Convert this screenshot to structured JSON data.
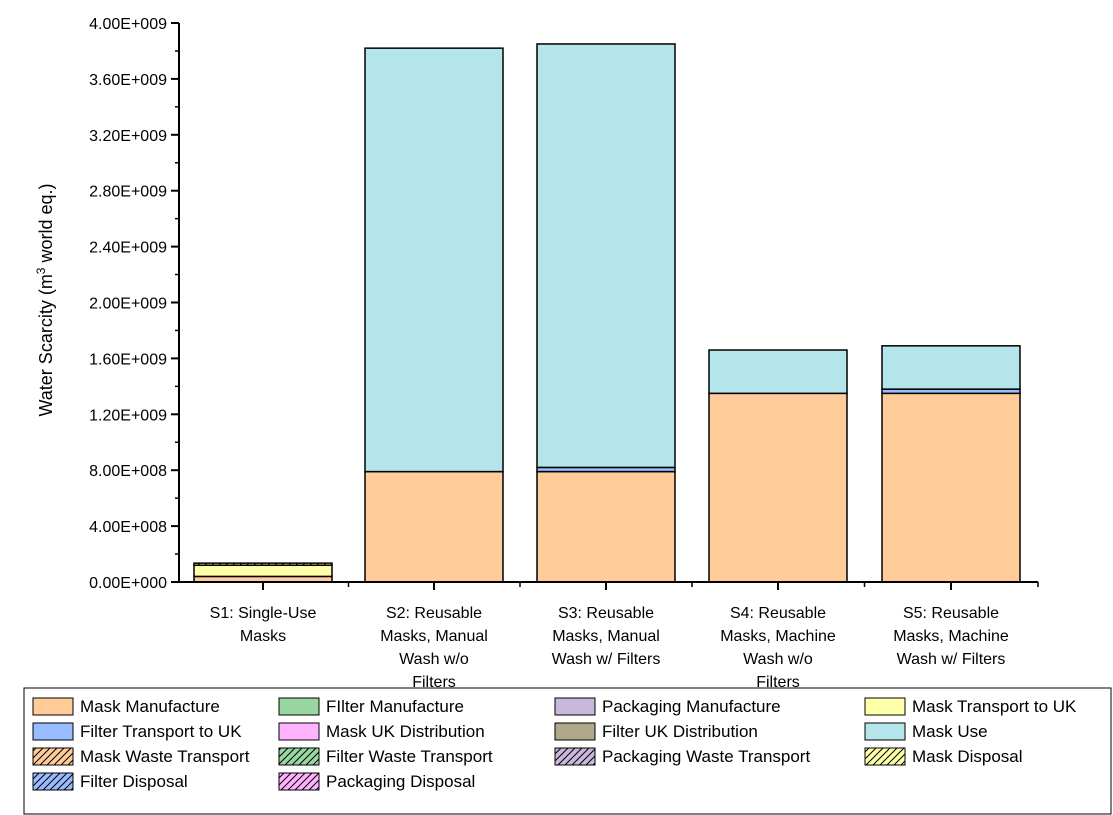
{
  "chart_data": {
    "type": "bar",
    "stacked": true,
    "ylabel_main": "Water Scarcity (m",
    "ylabel_sup": "3",
    "ylabel_tail": " world eq.)",
    "xlabel": "",
    "ylim": [
      0,
      4000000000
    ],
    "yticks": [
      "0.00E+000",
      "4.00E+008",
      "8.00E+008",
      "1.20E+009",
      "1.60E+009",
      "2.00E+009",
      "2.40E+009",
      "2.80E+009",
      "3.20E+009",
      "3.60E+009",
      "4.00E+009"
    ],
    "categories": [
      [
        "S1: Single-Use",
        "Masks"
      ],
      [
        "S2: Reusable",
        "Masks, Manual",
        "Wash w/o",
        "Filters"
      ],
      [
        "S3: Reusable",
        "Masks, Manual",
        "Wash w/ Filters"
      ],
      [
        "S4: Reusable",
        "Masks, Machine",
        "Wash w/o",
        "Filters"
      ],
      [
        "S5: Reusable",
        "Masks, Machine",
        "Wash w/ Filters"
      ]
    ],
    "legend_position": "bottom",
    "series": [
      {
        "name": "Mask Manufacture",
        "color": "#FFCC99",
        "hatch": false,
        "values": [
          40000000,
          790000000,
          790000000,
          1350000000,
          1350000000
        ]
      },
      {
        "name": "FIlter Manufacture",
        "color": "#99D6A1",
        "hatch": false,
        "values": [
          0,
          0,
          0,
          0,
          0
        ]
      },
      {
        "name": "Packaging Manufacture",
        "color": "#C9B8DA",
        "hatch": false,
        "values": [
          0,
          0,
          0,
          0,
          0
        ]
      },
      {
        "name": "Mask Transport to UK",
        "color": "#FFFFAA",
        "hatch": false,
        "values": [
          80000000,
          0,
          0,
          0,
          0
        ]
      },
      {
        "name": "Filter Transport to UK",
        "color": "#99BBFF",
        "hatch": false,
        "values": [
          0,
          0,
          30000000,
          0,
          30000000
        ]
      },
      {
        "name": "Mask UK Distribution",
        "color": "#FFB3FF",
        "hatch": false,
        "values": [
          0,
          0,
          0,
          0,
          0
        ]
      },
      {
        "name": "Filter UK Distribution",
        "color": "#AFA98A",
        "hatch": false,
        "values": [
          0,
          0,
          0,
          0,
          0
        ]
      },
      {
        "name": "Mask Use",
        "color": "#B3E5EB",
        "hatch": false,
        "values": [
          0,
          3030000000,
          3030000000,
          310000000,
          310000000
        ]
      },
      {
        "name": "Mask Waste Transport",
        "color": "#FFCC99",
        "hatch": true,
        "values": [
          0,
          0,
          0,
          0,
          0
        ]
      },
      {
        "name": "Filter Waste Transport",
        "color": "#99D6A1",
        "hatch": true,
        "values": [
          0,
          0,
          0,
          0,
          0
        ]
      },
      {
        "name": "Packaging Waste Transport",
        "color": "#C9B8DA",
        "hatch": true,
        "values": [
          0,
          0,
          0,
          0,
          0
        ]
      },
      {
        "name": "Mask Disposal",
        "color": "#FFFFAA",
        "hatch": true,
        "values": [
          15000000,
          0,
          0,
          0,
          0
        ]
      },
      {
        "name": "Filter Disposal",
        "color": "#99BBFF",
        "hatch": true,
        "values": [
          0,
          0,
          0,
          0,
          0
        ]
      },
      {
        "name": "Packaging Disposal",
        "color": "#FFB3FF",
        "hatch": true,
        "values": [
          0,
          0,
          0,
          0,
          0
        ]
      }
    ]
  }
}
